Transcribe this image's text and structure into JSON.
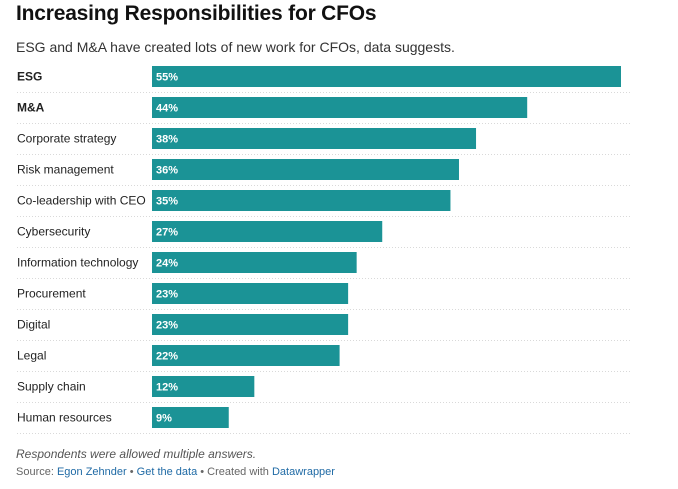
{
  "header": {
    "title": "Increasing Responsibilities for CFOs",
    "subtitle": "ESG and M&A have created lots of new work for CFOs, data suggests."
  },
  "colors": {
    "bar": "#1b9396",
    "bar_label": "#ffffff",
    "link": "#1f6aa5"
  },
  "chart_data": {
    "type": "bar",
    "orientation": "horizontal",
    "title": "Increasing Responsibilities for CFOs",
    "subtitle": "ESG and M&A have created lots of new work for CFOs, data suggests.",
    "categories": [
      "ESG",
      "M&A",
      "Corporate strategy",
      "Risk management",
      "Co-leadership with CEO",
      "Cybersecurity",
      "Information technology",
      "Procurement",
      "Digital",
      "Legal",
      "Supply chain",
      "Human resources"
    ],
    "values": [
      55,
      44,
      38,
      36,
      35,
      27,
      24,
      23,
      23,
      22,
      12,
      9
    ],
    "value_labels": [
      "55%",
      "44%",
      "38%",
      "36%",
      "35%",
      "27%",
      "24%",
      "23%",
      "23%",
      "22%",
      "12%",
      "9%"
    ],
    "bold_categories": [
      "ESG",
      "M&A"
    ],
    "unit": "%",
    "xlim": [
      0,
      55
    ],
    "xlabel": "",
    "ylabel": "",
    "grid": false
  },
  "footer": {
    "note": "Respondents were allowed multiple answers.",
    "source_prefix": "Source: ",
    "source_name": "Egon Zehnder",
    "sep1": " • ",
    "get_data": "Get the data",
    "sep2": " • Created with ",
    "created_with": "Datawrapper"
  }
}
